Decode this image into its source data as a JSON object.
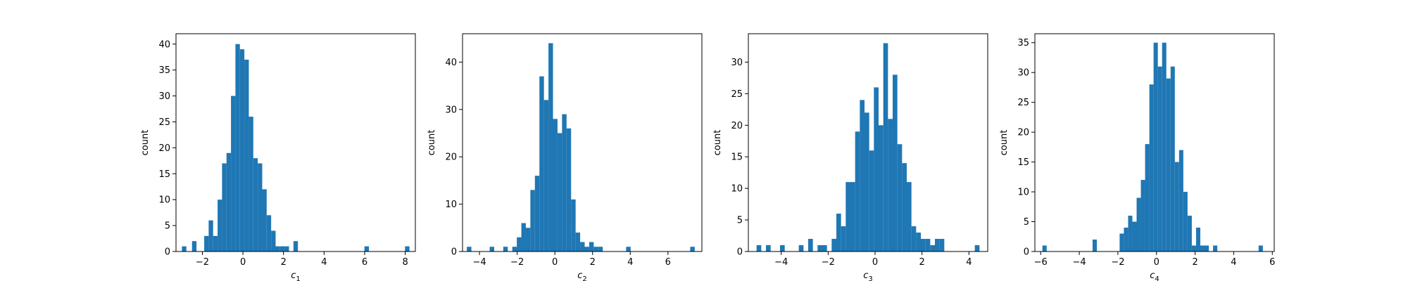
{
  "colors": {
    "bar": "#1f77b4",
    "axis": "#000000"
  },
  "chart_data": [
    {
      "type": "bar",
      "ylabel": "count",
      "xlabel": {
        "base": "c",
        "sub": "1"
      },
      "xlim": [
        -3.3,
        8.5
      ],
      "ylim": [
        0,
        42
      ],
      "xticks": [
        -2,
        0,
        2,
        4,
        6,
        8
      ],
      "yticks": [
        0,
        5,
        10,
        15,
        20,
        25,
        30,
        35,
        40
      ],
      "bin_width": 0.22,
      "bars": [
        [
          -2.9,
          1
        ],
        [
          -2.4,
          2
        ],
        [
          -1.8,
          3
        ],
        [
          -1.58,
          6
        ],
        [
          -1.36,
          3
        ],
        [
          -1.14,
          10
        ],
        [
          -0.92,
          17
        ],
        [
          -0.7,
          19
        ],
        [
          -0.48,
          30
        ],
        [
          -0.26,
          40
        ],
        [
          -0.04,
          39
        ],
        [
          0.18,
          37
        ],
        [
          0.4,
          26
        ],
        [
          0.62,
          18
        ],
        [
          0.84,
          17
        ],
        [
          1.06,
          12
        ],
        [
          1.28,
          7
        ],
        [
          1.5,
          4
        ],
        [
          1.72,
          1
        ],
        [
          1.94,
          1
        ],
        [
          2.16,
          1
        ],
        [
          2.6,
          2
        ],
        [
          6.1,
          1
        ],
        [
          8.1,
          1
        ]
      ]
    },
    {
      "type": "bar",
      "ylabel": "count",
      "xlabel": {
        "base": "c",
        "sub": "2"
      },
      "xlim": [
        -4.9,
        7.8
      ],
      "ylim": [
        0,
        46
      ],
      "xticks": [
        -4,
        -2,
        0,
        2,
        4,
        6
      ],
      "yticks": [
        0,
        10,
        20,
        30,
        40
      ],
      "bin_width": 0.24,
      "bars": [
        [
          -4.55,
          1
        ],
        [
          -3.34,
          1
        ],
        [
          -2.62,
          1
        ],
        [
          -2.14,
          1
        ],
        [
          -1.9,
          3
        ],
        [
          -1.66,
          6
        ],
        [
          -1.42,
          5
        ],
        [
          -1.18,
          13
        ],
        [
          -0.94,
          16
        ],
        [
          -0.7,
          37
        ],
        [
          -0.46,
          32
        ],
        [
          -0.22,
          44
        ],
        [
          0.02,
          28
        ],
        [
          0.26,
          25
        ],
        [
          0.5,
          29
        ],
        [
          0.74,
          26
        ],
        [
          0.98,
          11
        ],
        [
          1.22,
          4
        ],
        [
          1.46,
          2
        ],
        [
          1.7,
          1
        ],
        [
          1.94,
          2
        ],
        [
          2.18,
          1
        ],
        [
          2.42,
          1
        ],
        [
          3.9,
          1
        ],
        [
          7.3,
          1
        ]
      ]
    },
    {
      "type": "bar",
      "ylabel": "count",
      "xlabel": {
        "base": "c",
        "sub": "3"
      },
      "xlim": [
        -5.4,
        4.8
      ],
      "ylim": [
        0,
        34.5
      ],
      "xticks": [
        -4,
        -2,
        0,
        2,
        4
      ],
      "yticks": [
        0,
        5,
        10,
        15,
        20,
        25,
        30
      ],
      "bin_width": 0.2,
      "bars": [
        [
          -4.95,
          1
        ],
        [
          -4.55,
          1
        ],
        [
          -3.95,
          1
        ],
        [
          -3.15,
          1
        ],
        [
          -2.75,
          2
        ],
        [
          -2.35,
          1
        ],
        [
          -2.15,
          1
        ],
        [
          -1.75,
          2
        ],
        [
          -1.55,
          6
        ],
        [
          -1.35,
          4
        ],
        [
          -1.15,
          11
        ],
        [
          -0.95,
          11
        ],
        [
          -0.75,
          19
        ],
        [
          -0.55,
          24
        ],
        [
          -0.35,
          22
        ],
        [
          -0.15,
          16
        ],
        [
          0.05,
          26
        ],
        [
          0.25,
          20
        ],
        [
          0.45,
          33
        ],
        [
          0.65,
          21
        ],
        [
          0.85,
          28
        ],
        [
          1.05,
          17
        ],
        [
          1.25,
          14
        ],
        [
          1.45,
          11
        ],
        [
          1.65,
          4
        ],
        [
          1.85,
          3
        ],
        [
          2.05,
          2
        ],
        [
          2.25,
          2
        ],
        [
          2.45,
          1
        ],
        [
          2.65,
          2
        ],
        [
          2.85,
          2
        ],
        [
          4.35,
          1
        ]
      ]
    },
    {
      "type": "bar",
      "ylabel": "count",
      "xlabel": {
        "base": "c",
        "sub": "4"
      },
      "xlim": [
        -6.3,
        6.1
      ],
      "ylim": [
        0,
        36.5
      ],
      "xticks": [
        -6,
        -4,
        -2,
        0,
        2,
        4,
        6
      ],
      "yticks": [
        0,
        5,
        10,
        15,
        20,
        25,
        30,
        35
      ],
      "bin_width": 0.22,
      "bars": [
        [
          -5.8,
          1
        ],
        [
          -3.2,
          2
        ],
        [
          -1.8,
          3
        ],
        [
          -1.58,
          4
        ],
        [
          -1.36,
          6
        ],
        [
          -1.14,
          5
        ],
        [
          -0.92,
          9
        ],
        [
          -0.7,
          12
        ],
        [
          -0.48,
          18
        ],
        [
          -0.26,
          28
        ],
        [
          -0.04,
          35
        ],
        [
          0.18,
          31
        ],
        [
          0.4,
          35
        ],
        [
          0.62,
          29
        ],
        [
          0.84,
          31
        ],
        [
          1.06,
          15
        ],
        [
          1.28,
          17
        ],
        [
          1.5,
          10
        ],
        [
          1.72,
          6
        ],
        [
          1.94,
          1
        ],
        [
          2.16,
          4
        ],
        [
          2.38,
          1
        ],
        [
          2.6,
          1
        ],
        [
          3.04,
          1
        ],
        [
          5.4,
          1
        ]
      ]
    }
  ]
}
